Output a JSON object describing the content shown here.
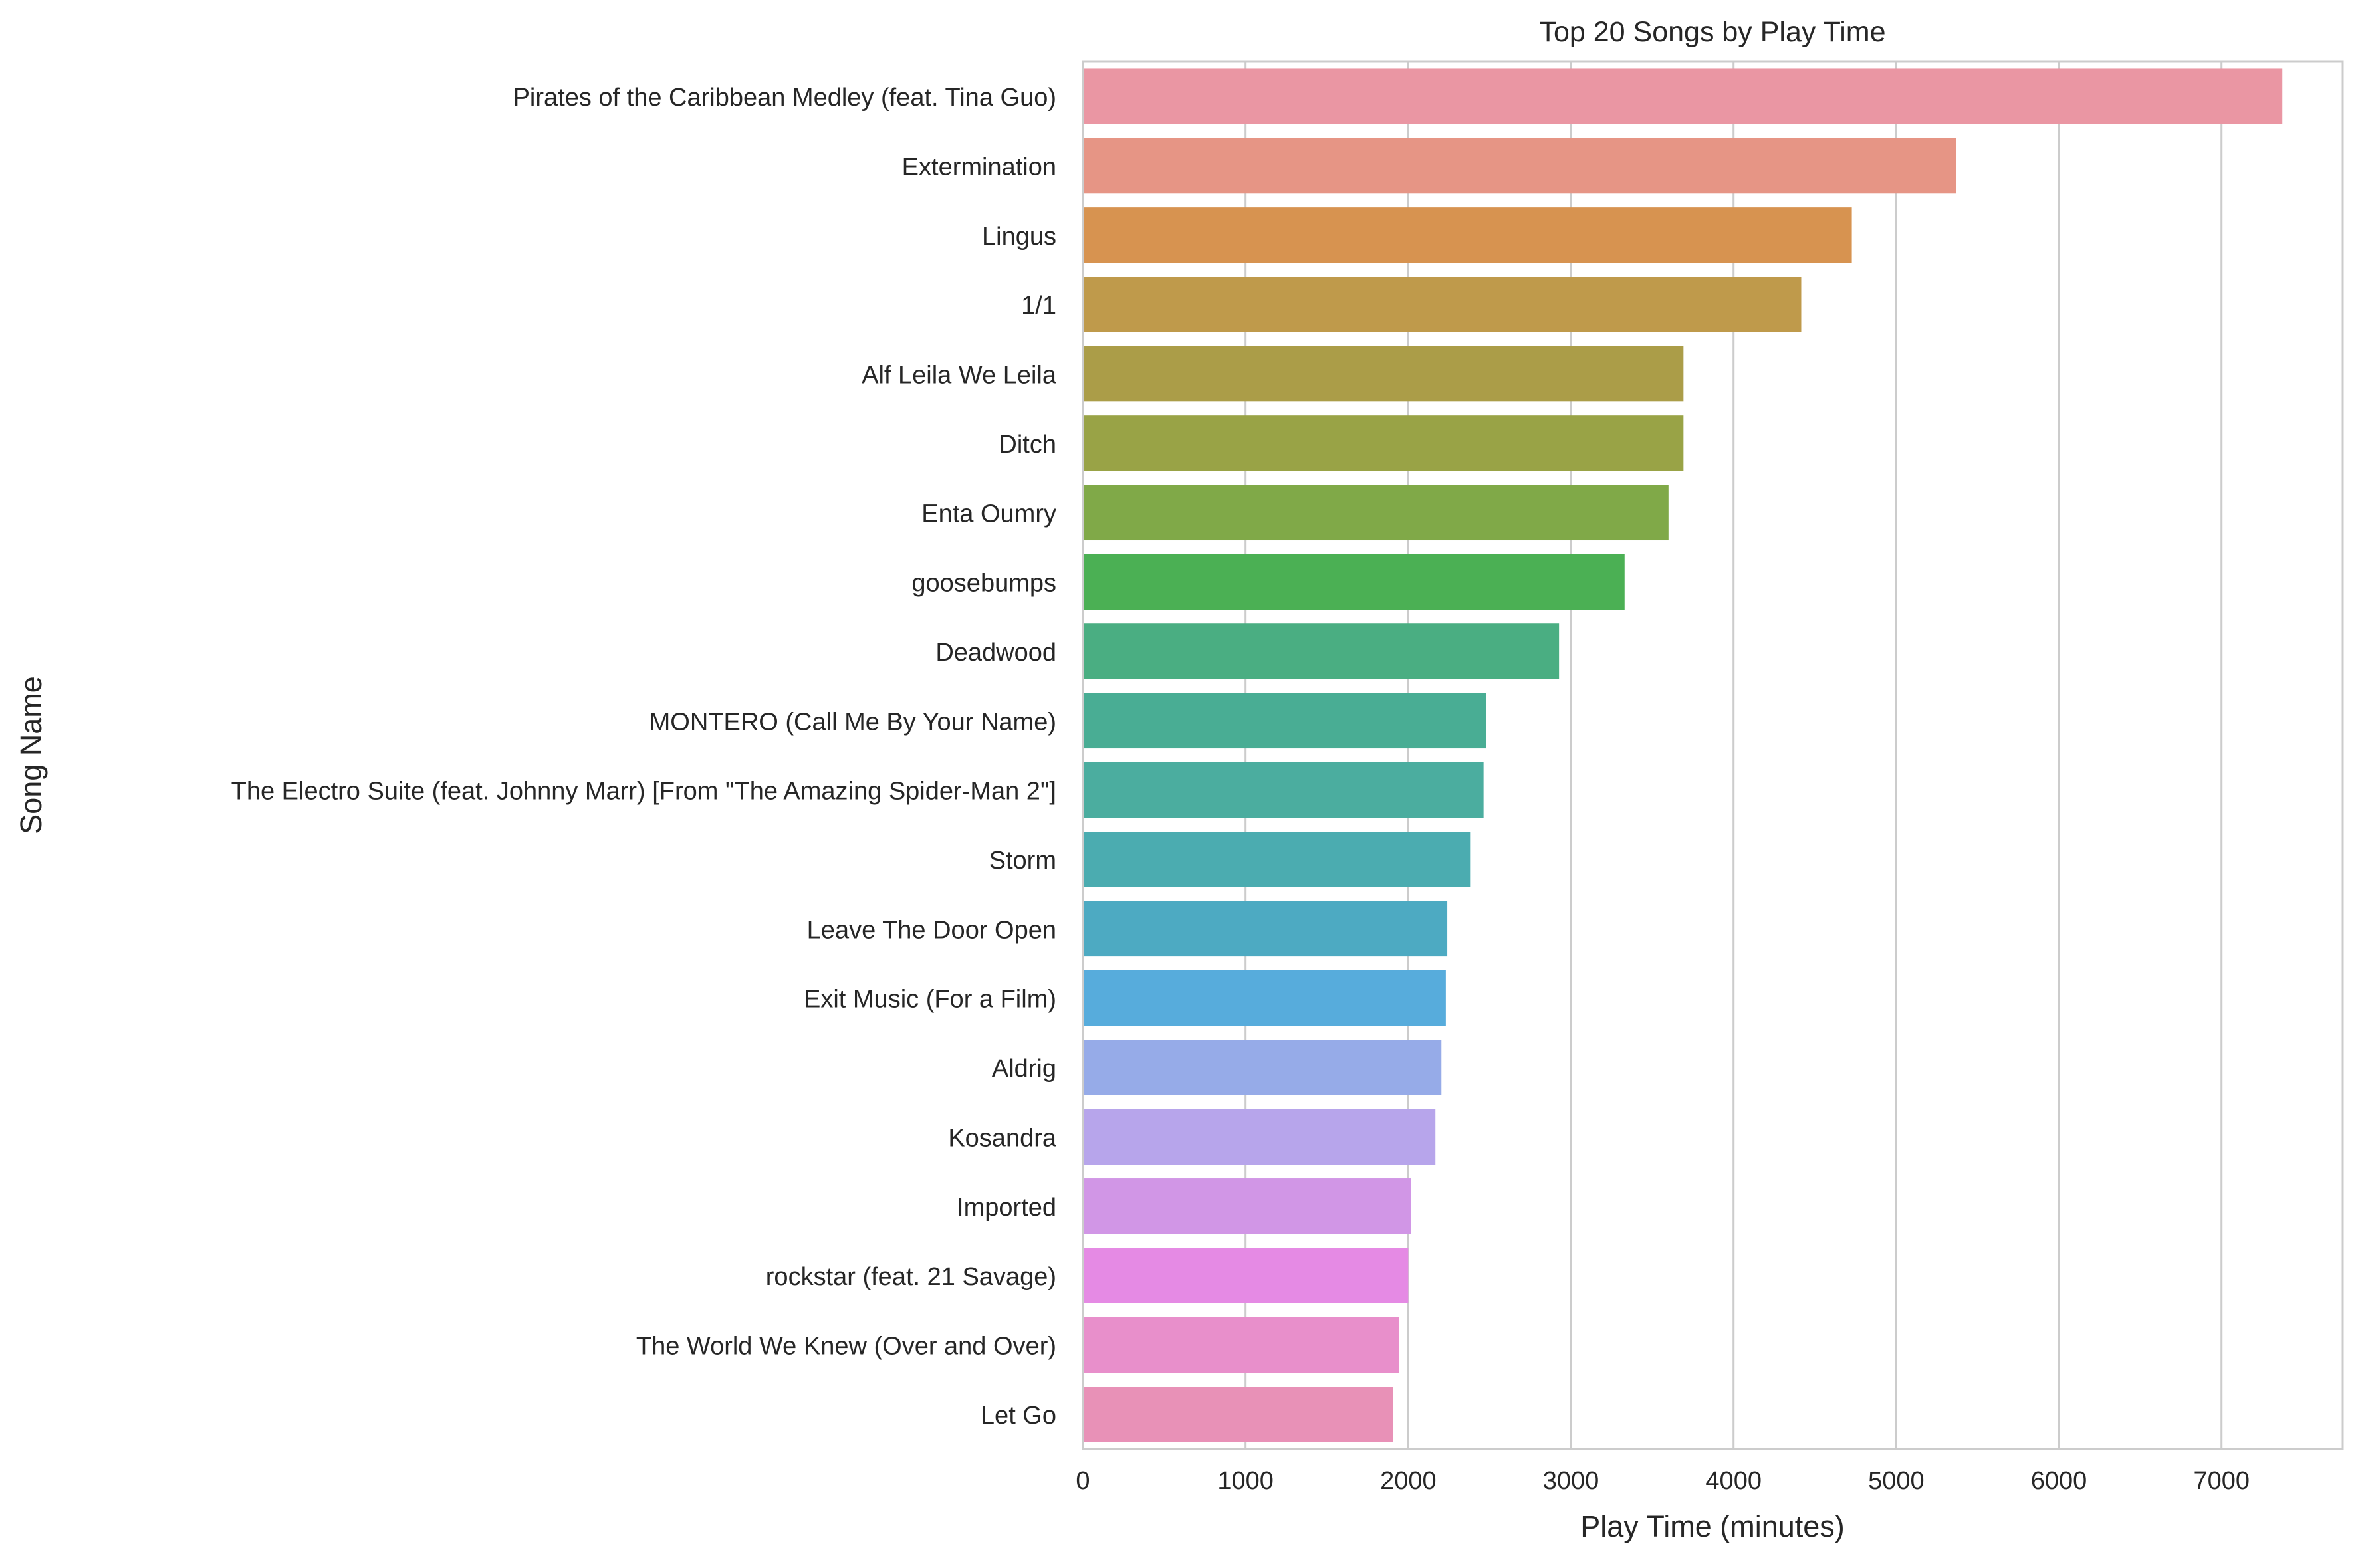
{
  "chart_data": {
    "type": "bar",
    "orientation": "horizontal",
    "title": "Top 20 Songs by Play Time",
    "xlabel": "Play Time (minutes)",
    "ylabel": "Song Name",
    "xlim": [
      0,
      7745
    ],
    "xticks": [
      0,
      1000,
      2000,
      3000,
      4000,
      5000,
      6000,
      7000
    ],
    "grid": true,
    "categories": [
      "Pirates of the Caribbean Medley (feat. Tina Guo)",
      "Extermination",
      "Lingus",
      "1/1",
      "Alf Leila We Leila",
      "Ditch",
      "Enta Oumry",
      "goosebumps",
      "Deadwood",
      "MONTERO (Call Me By Your Name)",
      "The Electro Suite (feat. Johnny Marr) [From \"The Amazing Spider-Man 2\"]",
      "Storm",
      "Leave The Door Open",
      "Exit Music (For a Film)",
      "Aldrig",
      "Kosandra",
      "Imported",
      "rockstar (feat. 21 Savage)",
      "The World We Knew (Over and Over)",
      "Let Go"
    ],
    "values": [
      7374,
      5370,
      4727,
      4416,
      3692,
      3692,
      3600,
      3330,
      2927,
      2478,
      2463,
      2380,
      2240,
      2231,
      2204,
      2167,
      2019,
      2000,
      1944,
      1907
    ],
    "colors": [
      "#ea96a3",
      "#e69585",
      "#d79350",
      "#bf9a4b",
      "#ab9d48",
      "#99a346",
      "#80a948",
      "#4bb054",
      "#4aae82",
      "#49ad94",
      "#4bad9f",
      "#4bacb0",
      "#4daac2",
      "#57acdc",
      "#96abe8",
      "#b7a5eb",
      "#d196e6",
      "#e58ae4",
      "#e88fcb",
      "#e891b7"
    ]
  }
}
